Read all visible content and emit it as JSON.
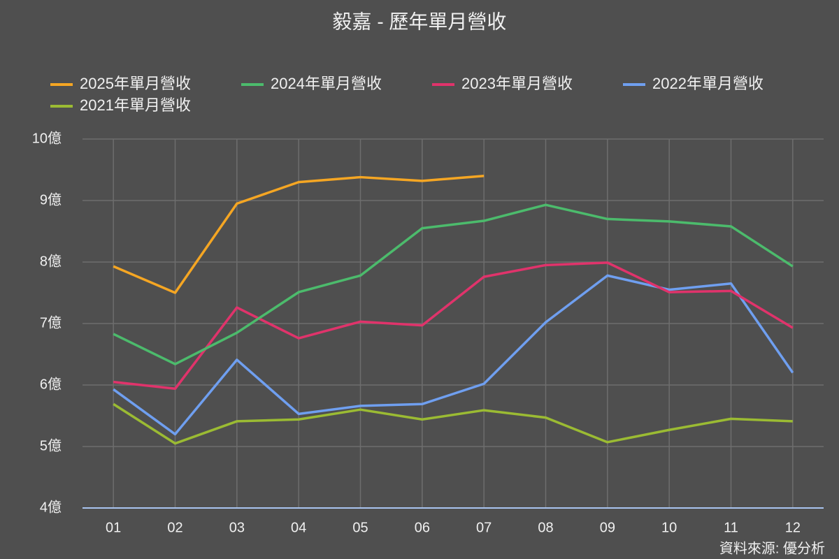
{
  "chart_data": {
    "type": "line",
    "title": "毅嘉 - 歷年單月營收",
    "categories": [
      "01",
      "02",
      "03",
      "04",
      "05",
      "06",
      "07",
      "08",
      "09",
      "10",
      "11",
      "12"
    ],
    "series": [
      {
        "name": "2025年單月營收",
        "color": "#f5a623",
        "values": [
          7.93,
          7.5,
          8.95,
          9.3,
          9.38,
          9.32,
          9.4,
          null,
          null,
          null,
          null,
          null
        ]
      },
      {
        "name": "2024年單月營收",
        "color": "#4cbb6c",
        "values": [
          6.83,
          6.34,
          6.85,
          7.51,
          7.78,
          8.55,
          8.67,
          8.93,
          8.7,
          8.66,
          8.58,
          7.93
        ]
      },
      {
        "name": "2023年單月營收",
        "color": "#e0336b",
        "values": [
          6.05,
          5.94,
          7.26,
          6.76,
          7.03,
          6.97,
          7.76,
          7.95,
          7.99,
          7.51,
          7.53,
          6.93
        ]
      },
      {
        "name": "2022年單月營收",
        "color": "#6f9ff0",
        "values": [
          5.93,
          5.2,
          6.41,
          5.53,
          5.66,
          5.69,
          6.02,
          7.02,
          7.78,
          7.55,
          7.65,
          6.2
        ]
      },
      {
        "name": "2021年單月營收",
        "color": "#9bbb33",
        "values": [
          5.69,
          5.05,
          5.41,
          5.44,
          5.6,
          5.44,
          5.59,
          5.47,
          5.07,
          5.27,
          5.45,
          5.41
        ]
      }
    ],
    "ylim": [
      4,
      10
    ],
    "yticks": [
      {
        "value": 4,
        "label": "4億"
      },
      {
        "value": 5,
        "label": "5億"
      },
      {
        "value": 6,
        "label": "6億"
      },
      {
        "value": 7,
        "label": "7億"
      },
      {
        "value": 8,
        "label": "8億"
      },
      {
        "value": 9,
        "label": "9億"
      },
      {
        "value": 10,
        "label": "10億"
      }
    ],
    "grid": true,
    "source": "資料來源: 優分析"
  }
}
